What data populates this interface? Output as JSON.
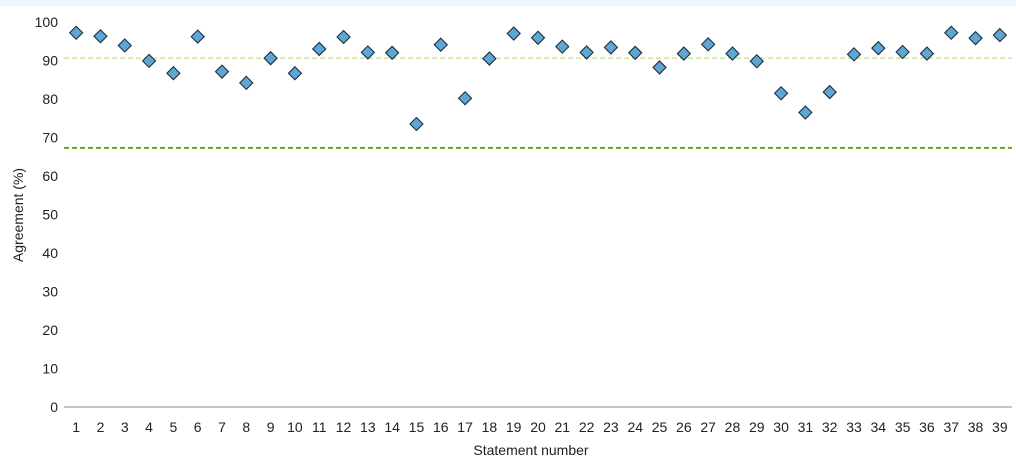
{
  "chart_data": {
    "type": "scatter",
    "title": "",
    "xlabel": "Statement number",
    "ylabel": "Agreement (%)",
    "ylim": [
      0,
      100
    ],
    "yticks": [
      0,
      10,
      20,
      30,
      40,
      50,
      60,
      70,
      80,
      90,
      100
    ],
    "categories": [
      "1",
      "2",
      "3",
      "4",
      "5",
      "6",
      "7",
      "8",
      "9",
      "10",
      "11",
      "12",
      "13",
      "14",
      "15",
      "16",
      "17",
      "18",
      "19",
      "20",
      "21",
      "22",
      "23",
      "24",
      "25",
      "26",
      "27",
      "28",
      "29",
      "30",
      "31",
      "32",
      "33",
      "34",
      "35",
      "36",
      "37",
      "38",
      "39"
    ],
    "series": [
      {
        "values": [
          97.2,
          96.3,
          93.9,
          89.9,
          86.7,
          96.2,
          87.1,
          84.2,
          90.6,
          86.7,
          93.0,
          96.1,
          92.1,
          92.0,
          73.5,
          94.1,
          80.2,
          90.5,
          97.0,
          95.9,
          93.6,
          92.1,
          93.4,
          92.0,
          88.2,
          91.8,
          94.2,
          91.8,
          89.8,
          81.5,
          76.5,
          81.8,
          91.6,
          93.2,
          92.2,
          91.8,
          97.2,
          95.8,
          96.6
        ],
        "marker": "diamond",
        "color": "#5ea6d4"
      }
    ],
    "reference_lines": [
      {
        "value": 90.6,
        "style": "dashed",
        "color": "#cfe3a6"
      },
      {
        "value": 67.3,
        "style": "dashed",
        "color": "#69a532"
      }
    ],
    "grid": false,
    "legend": "none"
  }
}
